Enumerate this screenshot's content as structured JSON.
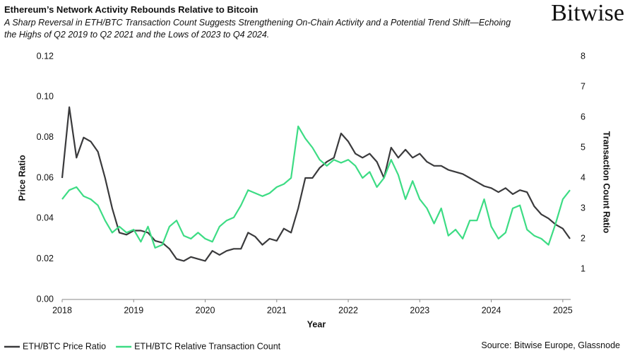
{
  "brand": "Bitwise",
  "source": "Source: Bitwise Europe, Glassnode",
  "chart_data": {
    "type": "line",
    "title": "Ethereum’s Network Activity Rebounds Relative to Bitcoin",
    "subtitle": "A Sharp Reversal in ETH/BTC Transaction Count Suggests Strengthening On-Chain Activity and a Potential Trend Shift—Echoing the Highs of Q2 2019 to Q2 2021 and the Lows of 2023 to Q4 2024.",
    "x_label": "Year",
    "y_label": "Price Ratio",
    "y2_label": "Transaction Count Ratio",
    "xlim": [
      2018,
      2025.11
    ],
    "xticks": [
      2018,
      2019,
      2020,
      2021,
      2022,
      2023,
      2024,
      2025
    ],
    "ylim": [
      0,
      0.12
    ],
    "yticks": [
      {
        "value": 0,
        "label": "0.00"
      },
      {
        "value": 0.02,
        "label": "0.02"
      },
      {
        "value": 0.04,
        "label": "0.04"
      },
      {
        "value": 0.06,
        "label": "0.06"
      },
      {
        "value": 0.08,
        "label": "0.08"
      },
      {
        "value": 0.1,
        "label": "0.10"
      },
      {
        "value": 0.12,
        "label": "0.12"
      }
    ],
    "y2lim": [
      0,
      8
    ],
    "y2ticks": [
      1,
      2,
      3,
      4,
      5,
      6,
      7,
      8
    ],
    "legend": "bottom-left",
    "x": [
      2018.0,
      2018.1,
      2018.2,
      2018.3,
      2018.4,
      2018.5,
      2018.6,
      2018.7,
      2018.8,
      2018.9,
      2019.0,
      2019.1,
      2019.2,
      2019.3,
      2019.4,
      2019.5,
      2019.6,
      2019.7,
      2019.8,
      2019.9,
      2020.0,
      2020.1,
      2020.2,
      2020.3,
      2020.4,
      2020.5,
      2020.6,
      2020.7,
      2020.8,
      2020.9,
      2021.0,
      2021.1,
      2021.2,
      2021.3,
      2021.4,
      2021.5,
      2021.6,
      2021.7,
      2021.8,
      2021.9,
      2022.0,
      2022.1,
      2022.2,
      2022.3,
      2022.4,
      2022.5,
      2022.6,
      2022.7,
      2022.8,
      2022.9,
      2023.0,
      2023.1,
      2023.2,
      2023.3,
      2023.4,
      2023.5,
      2023.6,
      2023.7,
      2023.8,
      2023.9,
      2024.0,
      2024.1,
      2024.2,
      2024.3,
      2024.4,
      2024.5,
      2024.6,
      2024.7,
      2024.8,
      2024.9,
      2025.0,
      2025.1
    ],
    "series": [
      {
        "name": "ETH/BTC Price Ratio",
        "color": "#3a3a3c",
        "values": [
          0.06,
          0.095,
          0.07,
          0.08,
          0.078,
          0.073,
          0.06,
          0.045,
          0.033,
          0.032,
          0.034,
          0.034,
          0.033,
          0.029,
          0.028,
          0.025,
          0.02,
          0.019,
          0.021,
          0.02,
          0.019,
          0.024,
          0.022,
          0.024,
          0.025,
          0.025,
          0.033,
          0.031,
          0.027,
          0.03,
          0.029,
          0.035,
          0.033,
          0.045,
          0.06,
          0.06,
          0.065,
          0.068,
          0.07,
          0.082,
          0.078,
          0.072,
          0.07,
          0.072,
          0.068,
          0.06,
          0.075,
          0.07,
          0.074,
          0.07,
          0.072,
          0.068,
          0.066,
          0.066,
          0.064,
          0.063,
          0.062,
          0.06,
          0.058,
          0.056,
          0.055,
          0.053,
          0.055,
          0.052,
          0.054,
          0.053,
          0.046,
          0.042,
          0.04,
          0.037,
          0.035,
          0.03
        ]
      },
      {
        "name": "ETH/BTC Relative Transaction Count",
        "color": "#3ddc84",
        "axis": "y2",
        "values": [
          3.3,
          3.6,
          3.7,
          3.4,
          3.3,
          3.1,
          2.6,
          2.2,
          2.4,
          2.2,
          2.3,
          1.9,
          2.4,
          1.7,
          1.8,
          2.4,
          2.6,
          2.1,
          2.0,
          2.2,
          2.0,
          1.9,
          2.4,
          2.6,
          2.7,
          3.1,
          3.6,
          3.5,
          3.4,
          3.5,
          3.7,
          3.8,
          4.0,
          5.7,
          5.3,
          5.0,
          4.6,
          4.4,
          4.6,
          4.5,
          4.6,
          4.4,
          4.0,
          4.2,
          3.7,
          4.0,
          4.6,
          4.1,
          3.3,
          3.9,
          3.3,
          3.0,
          2.5,
          3.0,
          2.1,
          2.3,
          2.0,
          2.6,
          2.6,
          3.3,
          2.4,
          2.0,
          2.2,
          3.0,
          3.1,
          2.3,
          2.1,
          2.0,
          1.8,
          2.5,
          3.3,
          3.6
        ]
      }
    ]
  }
}
